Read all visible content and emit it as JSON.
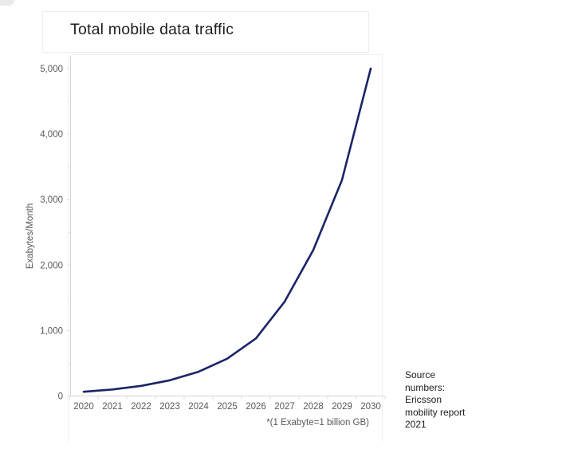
{
  "title_card": {
    "title": "Total mobile data traffic"
  },
  "chart_data": {
    "type": "line",
    "title": "Total mobile data traffic",
    "categories": [
      "2020",
      "2021",
      "2022",
      "2023",
      "2024",
      "2025",
      "2026",
      "2027",
      "2028",
      "2029",
      "2030"
    ],
    "series": [
      {
        "name": "Total mobile data traffic",
        "values": [
          65,
          100,
          155,
          240,
          370,
          570,
          880,
          1440,
          2230,
          3300,
          5000
        ]
      }
    ],
    "xlabel": "",
    "ylabel": "Exabytes/Month",
    "x_axis_note": "*(1 Exabyte=1 billion GB)",
    "ylim": [
      0,
      5000
    ],
    "y_ticks": [
      0,
      1000,
      2000,
      3000,
      4000,
      5000
    ],
    "y_tick_labels": [
      "0",
      "1,000",
      "2,000",
      "3,000",
      "4,000",
      "5,000"
    ],
    "y_minor_tick_step": 500,
    "grid": false,
    "legend": "none",
    "line_color": "#1a2468",
    "axis_color": "#d8d8d8",
    "tick_label_color": "#595959"
  },
  "source_note": {
    "lines": [
      "Source",
      "numbers:",
      "Ericsson",
      "mobility report",
      "2021"
    ]
  }
}
